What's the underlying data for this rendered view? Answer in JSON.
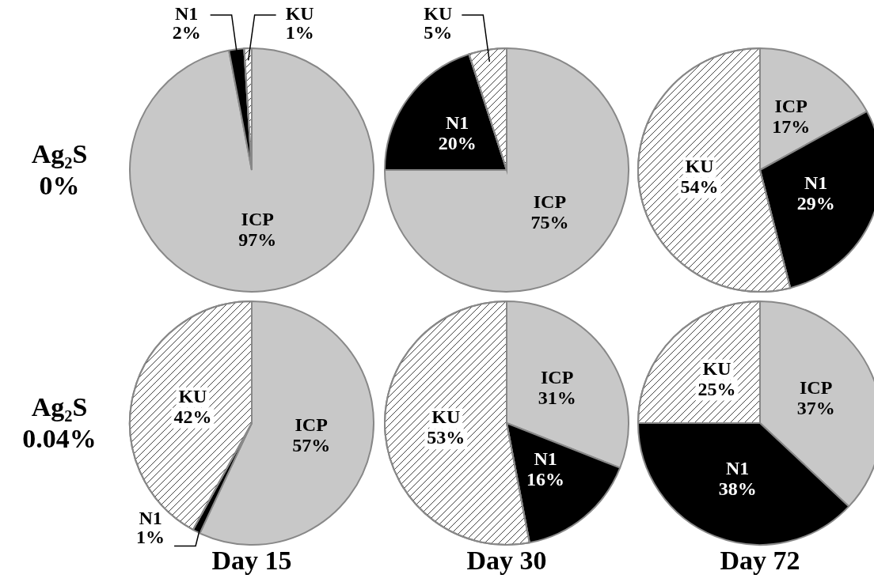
{
  "chart_data": [
    {
      "type": "pie",
      "ylabel": "Ag₂S\n0%",
      "categories": [
        "ICP",
        "N1",
        "KU"
      ],
      "values": [
        97,
        2,
        1
      ],
      "colors": [
        "#c8c8c8",
        "#000000",
        "#ffffff"
      ],
      "value_labels": [
        "97%",
        "2%",
        "1%"
      ]
    },
    {
      "type": "pie",
      "categories": [
        "ICP",
        "N1",
        "KU"
      ],
      "values": [
        75,
        20,
        5
      ],
      "colors": [
        "#c8c8c8",
        "#000000",
        "#ffffff"
      ],
      "value_labels": [
        "75%",
        "20%",
        "5%"
      ]
    },
    {
      "type": "pie",
      "categories": [
        "ICP",
        "N1",
        "KU"
      ],
      "values": [
        17,
        29,
        54
      ],
      "colors": [
        "#c8c8c8",
        "#000000",
        "#ffffff"
      ],
      "value_labels": [
        "17%",
        "29%",
        "54%"
      ]
    },
    {
      "type": "pie",
      "ylabel": "Ag₂S\n0.04%",
      "xlabel": "Day 15",
      "categories": [
        "ICP",
        "N1",
        "KU"
      ],
      "values": [
        57,
        1,
        42
      ],
      "colors": [
        "#c8c8c8",
        "#000000",
        "#ffffff"
      ],
      "value_labels": [
        "57%",
        "1%",
        "42%"
      ]
    },
    {
      "type": "pie",
      "xlabel": "Day 30",
      "categories": [
        "ICP",
        "N1",
        "KU"
      ],
      "values": [
        31,
        16,
        53
      ],
      "colors": [
        "#c8c8c8",
        "#000000",
        "#ffffff"
      ],
      "value_labels": [
        "31%",
        "16%",
        "53%"
      ]
    },
    {
      "type": "pie",
      "xlabel": "Day 72",
      "categories": [
        "ICP",
        "N1",
        "KU"
      ],
      "values": [
        37,
        38,
        25
      ],
      "colors": [
        "#c8c8c8",
        "#000000",
        "#ffffff"
      ],
      "value_labels": [
        "37%",
        "38%",
        "25%"
      ]
    }
  ]
}
